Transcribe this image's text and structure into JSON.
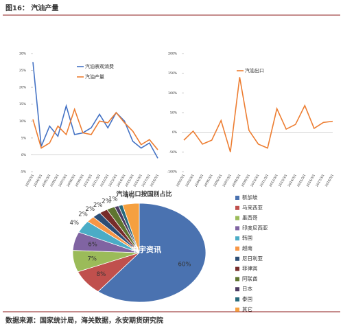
{
  "header": {
    "title": "图16：  汽油产量"
  },
  "footer": {
    "source": "数据来源：国家统计局，海关数据，永安期货研究院"
  },
  "chart_data": [
    {
      "type": "line",
      "x": [
        "2003/3/1",
        "2004/3/1",
        "2005/3/1",
        "2006/3/1",
        "2007/3/1",
        "2008/3/1",
        "2009/3/1",
        "2010/3/1",
        "2011/3/1",
        "2012/3/1",
        "2013/3/1",
        "2014/3/1",
        "2015/3/1",
        "2016/3/1",
        "2017/3/1",
        "2018/3/1"
      ],
      "series": [
        {
          "name": "汽油表观消费",
          "color": "#4472c4",
          "values": [
            27.5,
            2.5,
            8.5,
            5.5,
            14.5,
            6,
            6.5,
            8,
            12,
            8,
            12.5,
            10,
            4,
            2,
            3.5,
            -1
          ]
        },
        {
          "name": "汽油产量",
          "color": "#ed7d31",
          "values": [
            10.5,
            2,
            3.5,
            8.5,
            6,
            13.5,
            6.5,
            6,
            10,
            9.5,
            12.5,
            9.5,
            7,
            3,
            4.5,
            1.5
          ]
        }
      ],
      "ylim": [
        -5,
        30
      ],
      "yticks": [
        {
          "value": -5,
          "label": "-5%"
        },
        {
          "value": 0,
          "label": "0%"
        },
        {
          "value": 5,
          "label": "5%"
        },
        {
          "value": 10,
          "label": "10%"
        },
        {
          "value": 15,
          "label": "15%"
        },
        {
          "value": 20,
          "label": "20%"
        },
        {
          "value": 25,
          "label": "25%"
        },
        {
          "value": 30,
          "label": "30%"
        }
      ]
    },
    {
      "type": "line",
      "x": [
        "2002/3/1",
        "2003/3/1",
        "2004/3/1",
        "2005/3/1",
        "2006/3/1",
        "2007/3/1",
        "2008/3/1",
        "2009/3/1",
        "2010/3/1",
        "2011/3/1",
        "2012/3/1",
        "2013/3/1",
        "2014/3/1",
        "2015/3/1",
        "2016/3/1",
        "2017/3/1",
        "2018/3/1"
      ],
      "series": [
        {
          "name": "汽油出口",
          "color": "#ed7d31",
          "values": [
            -20,
            3,
            -30,
            -20,
            30,
            -50,
            140,
            5,
            -30,
            -40,
            60,
            8,
            20,
            68,
            10,
            25,
            28
          ]
        }
      ],
      "ylim": [
        -100,
        200
      ],
      "yticks": [
        {
          "value": -100,
          "label": "-100%"
        },
        {
          "value": -50,
          "label": "-50%"
        },
        {
          "value": 0,
          "label": "0%"
        },
        {
          "value": 50,
          "label": "50%"
        },
        {
          "value": 100,
          "label": "100%"
        },
        {
          "value": 150,
          "label": "150%"
        },
        {
          "value": 200,
          "label": "200%"
        }
      ]
    },
    {
      "type": "pie",
      "title": "汽油出口按国别占比",
      "watermark": "中宇资讯",
      "categories": [
        "新加坡",
        "马来西亚",
        "墨西哥",
        "印度尼西亚",
        "韩国",
        "越南",
        "尼日利亚",
        "菲律宾",
        "阿联酋",
        "日本",
        "泰国",
        "其它"
      ],
      "values": [
        60,
        8,
        7,
        6,
        4,
        2,
        2,
        2,
        2,
        1,
        1,
        4
      ],
      "value_labels": [
        "60%",
        "8%",
        "7%",
        "6%",
        "4%",
        "2%",
        "2%",
        "2%",
        "2%",
        "1%",
        null,
        "4%"
      ],
      "colors": [
        "#4a72b0",
        "#c0504d",
        "#9bbb59",
        "#8064a2",
        "#4bacc6",
        "#f79646",
        "#2c4d75",
        "#772c2a",
        "#5f7530",
        "#4d3b62",
        "#276a7c",
        "#f5a040"
      ]
    }
  ]
}
